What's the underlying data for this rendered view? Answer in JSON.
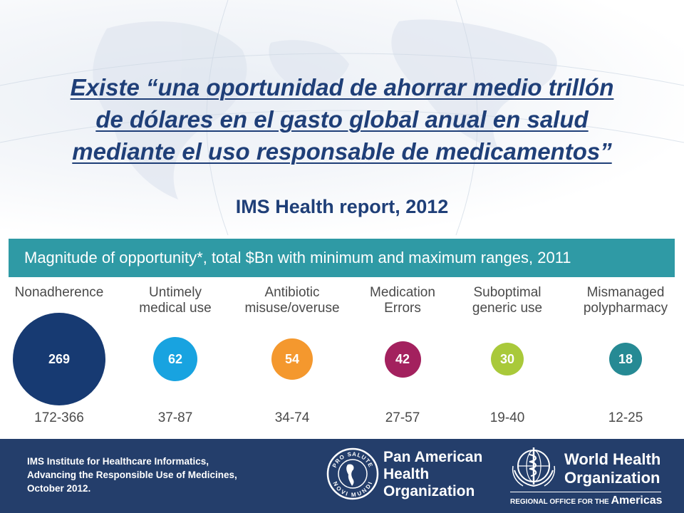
{
  "quote": {
    "line1": "Existe “una oportunidad de ahorrar medio trillón",
    "line2": "de dólares en el gasto global anual en salud",
    "line3": "mediante el uso responsable de medicamentos”"
  },
  "subtitle": "IMS Health report, 2012",
  "infographic": {
    "banner": "Magnitude of opportunity*, total $Bn with minimum and maximum ranges, 2011",
    "items": [
      {
        "label1": "Nonadherence",
        "label2": "",
        "value": "269",
        "range": "172-366",
        "color": "#173a72"
      },
      {
        "label1": "Untimely",
        "label2": "medical use",
        "value": "62",
        "range": "37-87",
        "color": "#18a3e0"
      },
      {
        "label1": "Antibiotic",
        "label2": "misuse/overuse",
        "value": "54",
        "range": "34-74",
        "color": "#f4982e"
      },
      {
        "label1": "Medication",
        "label2": "Errors",
        "value": "42",
        "range": "27-57",
        "color": "#a3215e"
      },
      {
        "label1": "Suboptimal",
        "label2": "generic use",
        "value": "30",
        "range": "19-40",
        "color": "#a9c93a"
      },
      {
        "label1": "Mismanaged",
        "label2": "polypharmacy",
        "value": "18",
        "range": "12-25",
        "color": "#268a94"
      }
    ]
  },
  "footer": {
    "citation": {
      "line1": "IMS Institute for Healthcare Informatics,",
      "line2": "Advancing  the Responsible  Use of Medicines,",
      "line3": "October 2012."
    },
    "paho": {
      "seal_top": "PRO SALUTE",
      "seal_bottom": "NOVI MUNDI",
      "line1": "Pan American",
      "line2": "Health",
      "line3": "Organization"
    },
    "who": {
      "line1": "World Health",
      "line2": "Organization",
      "regional_small": "REGIONAL OFFICE FOR THE",
      "regional_big": "Americas"
    }
  },
  "colors": {
    "title": "#1f3f78",
    "banner": "#2f9aa5",
    "footer": "#243e6b"
  }
}
